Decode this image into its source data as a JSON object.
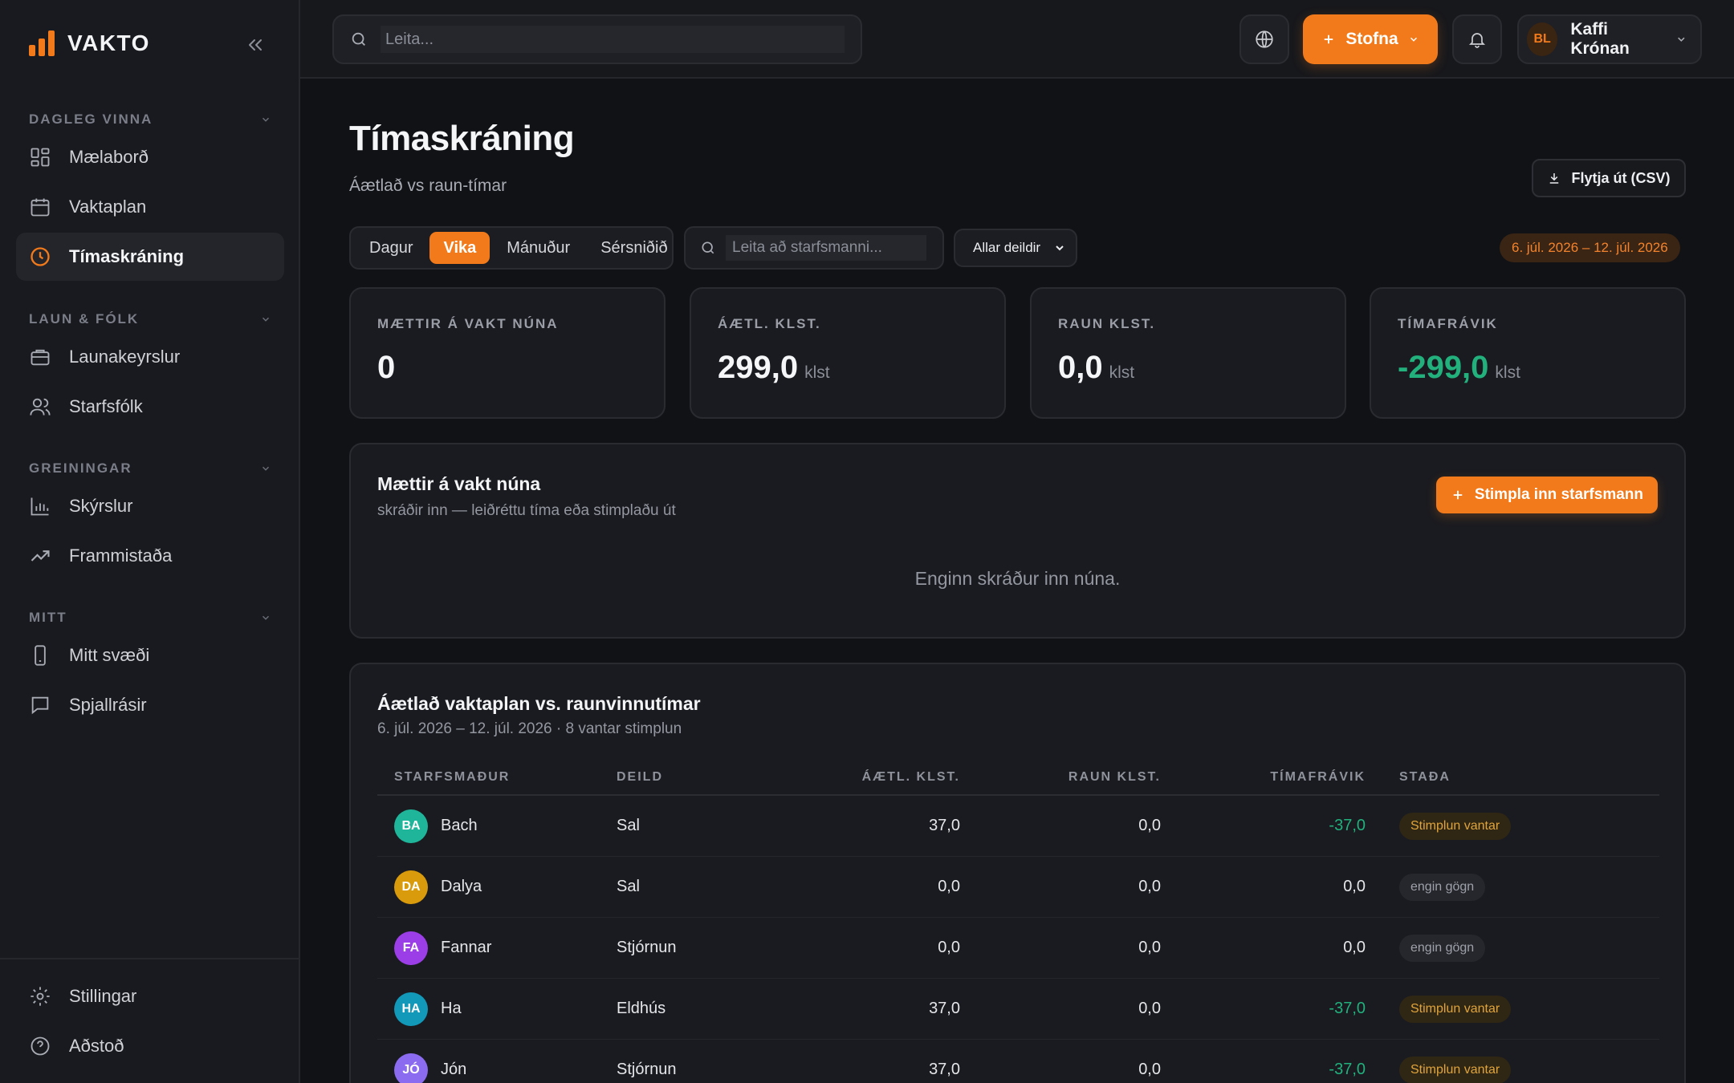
{
  "brand": {
    "name": "VAKTO"
  },
  "colors": {
    "accent": "#f27a1a",
    "positive": "#22b07d",
    "warning": "#e0a43b"
  },
  "sidebar": {
    "sections": [
      {
        "label": "DAGLEG VINNA",
        "items": [
          {
            "label": "Mælaborð",
            "icon": "dashboard-icon"
          },
          {
            "label": "Vaktaplan",
            "icon": "calendar-icon"
          },
          {
            "label": "Tímaskráning",
            "icon": "clock-icon",
            "active": true
          }
        ]
      },
      {
        "label": "LAUN & FÓLK",
        "items": [
          {
            "label": "Launakeyrslur",
            "icon": "wallet-icon"
          },
          {
            "label": "Starfsfólk",
            "icon": "users-icon"
          }
        ]
      },
      {
        "label": "GREININGAR",
        "items": [
          {
            "label": "Skýrslur",
            "icon": "bar-chart-icon"
          },
          {
            "label": "Frammistaða",
            "icon": "trend-icon"
          }
        ]
      },
      {
        "label": "MITT",
        "items": [
          {
            "label": "Mitt svæði",
            "icon": "phone-icon"
          },
          {
            "label": "Spjallrásir",
            "icon": "chat-icon"
          }
        ]
      }
    ],
    "bottom": [
      {
        "label": "Stillingar",
        "icon": "gear-icon"
      },
      {
        "label": "Aðstoð",
        "icon": "help-icon"
      }
    ]
  },
  "topbar": {
    "search_placeholder": "Leita...",
    "create_label": "Stofna",
    "org_initials": "BL",
    "org_name": "Kaffi Krónan"
  },
  "page": {
    "title": "Tímaskráning",
    "subtitle": "Áætlað vs raun-tímar",
    "export_label": "Flytja út (CSV)",
    "range_tabs": [
      "Dagur",
      "Vika",
      "Mánuður",
      "Sérsniðið"
    ],
    "active_tab": "Vika",
    "employee_search_placeholder": "Leita að starfsmanni...",
    "department_filter": "Allar deildir",
    "date_range": "6. júl. 2026 – 12. júl. 2026"
  },
  "stats": [
    {
      "label": "MÆTTIR Á VAKT NÚNA",
      "value": "0",
      "unit": ""
    },
    {
      "label": "ÁÆTL. KLST.",
      "value": "299,0",
      "unit": "klst"
    },
    {
      "label": "RAUN KLST.",
      "value": "0,0",
      "unit": "klst"
    },
    {
      "label": "TÍMAFRÁVIK",
      "value": "-299,0",
      "unit": "klst"
    }
  ],
  "on_shift": {
    "title": "Mættir á vakt núna",
    "subtitle": "skráðir inn — leiðréttu tíma eða stimplaðu út",
    "clock_in_label": "Stimpla inn starfsmann",
    "empty_text": "Enginn skráður inn núna."
  },
  "comparison": {
    "title": "Áætlað vaktaplan vs. raunvinnutímar",
    "subtitle": "6. júl. 2026 – 12. júl. 2026 · 8 vantar stimplun",
    "columns": [
      "STARFSMAÐUR",
      "DEILD",
      "ÁÆTL. KLST.",
      "RAUN KLST.",
      "TÍMAFRÁVIK",
      "STAÐA"
    ],
    "rows": [
      {
        "initials": "BA",
        "name": "Bach",
        "avatar_color": "#1fb59a",
        "dept": "Sal",
        "planned": "37,0",
        "actual": "0,0",
        "deviation": "-37,0",
        "status": "Stimplun vantar",
        "status_type": "warn"
      },
      {
        "initials": "DA",
        "name": "Dalya",
        "avatar_color": "#d99a0b",
        "dept": "Sal",
        "planned": "0,0",
        "actual": "0,0",
        "deviation": "0,0",
        "status": "engin gögn",
        "status_type": "none"
      },
      {
        "initials": "FA",
        "name": "Fannar",
        "avatar_color": "#9b3ee8",
        "dept": "Stjórnun",
        "planned": "0,0",
        "actual": "0,0",
        "deviation": "0,0",
        "status": "engin gögn",
        "status_type": "none"
      },
      {
        "initials": "HA",
        "name": "Ha",
        "avatar_color": "#1298b8",
        "dept": "Eldhús",
        "planned": "37,0",
        "actual": "0,0",
        "deviation": "-37,0",
        "status": "Stimplun vantar",
        "status_type": "warn"
      },
      {
        "initials": "JÓ",
        "name": "Jón",
        "avatar_color": "#8b6cf0",
        "dept": "Stjórnun",
        "planned": "37,0",
        "actual": "0,0",
        "deviation": "-37,0",
        "status": "Stimplun vantar",
        "status_type": "warn"
      }
    ]
  }
}
